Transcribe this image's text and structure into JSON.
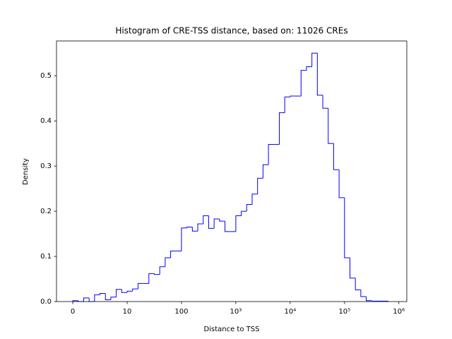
{
  "chart_data": {
    "type": "histogram",
    "title": "Histogram of CRE-TSS distance, based on: 11026 CREs",
    "x_label": "Distance to TSS",
    "y_label": "Density",
    "x_scale": "symlog",
    "linthresh": 10,
    "color": "#0000ff",
    "bins": [
      0,
      1,
      2,
      3,
      4,
      5,
      6,
      7,
      8,
      9,
      10,
      12.59,
      15.85,
      19.95,
      25.12,
      31.62,
      39.81,
      50.12,
      63.1,
      79.43,
      100,
      125.9,
      158.5,
      199.5,
      251.2,
      316.2,
      398.1,
      501.2,
      631,
      794.3,
      1000,
      1259,
      1585,
      1995,
      2512,
      3162,
      3981,
      5012,
      6310,
      7943,
      10000,
      12589,
      15849,
      19953,
      25119,
      31623,
      39811,
      50119,
      63096,
      79433,
      100000,
      125893,
      158489,
      199526,
      251189,
      316228,
      398107,
      501187,
      630957
    ],
    "values": [
      0.002,
      0,
      0.008,
      0,
      0.015,
      0.018,
      0.004,
      0.01,
      0.027,
      0.02,
      0.023,
      0.028,
      0.04,
      0.04,
      0.062,
      0.06,
      0.077,
      0.097,
      0.112,
      0.112,
      0.163,
      0.165,
      0.156,
      0.172,
      0.19,
      0.162,
      0.183,
      0.178,
      0.155,
      0.155,
      0.19,
      0.2,
      0.215,
      0.238,
      0.273,
      0.303,
      0.348,
      0.348,
      0.418,
      0.453,
      0.455,
      0.455,
      0.512,
      0.52,
      0.55,
      0.457,
      0.428,
      0.35,
      0.292,
      0.23,
      0.097,
      0.052,
      0.026,
      0.011,
      0.002,
      0.001,
      0.001,
      0.001
    ],
    "xlim": [
      -3,
      1400000
    ],
    "ylim": [
      0,
      0.577
    ],
    "xticks": [
      0,
      10,
      100,
      {
        "value": 1000,
        "label": "10³"
      },
      {
        "value": 10000,
        "label": "10⁴"
      },
      {
        "value": 100000,
        "label": "10⁵"
      },
      {
        "value": 1000000,
        "label": "10⁶"
      }
    ],
    "yticks": [
      {
        "value": 0,
        "label": "0.0"
      },
      0.1,
      0.2,
      0.3,
      0.4,
      0.5
    ]
  }
}
